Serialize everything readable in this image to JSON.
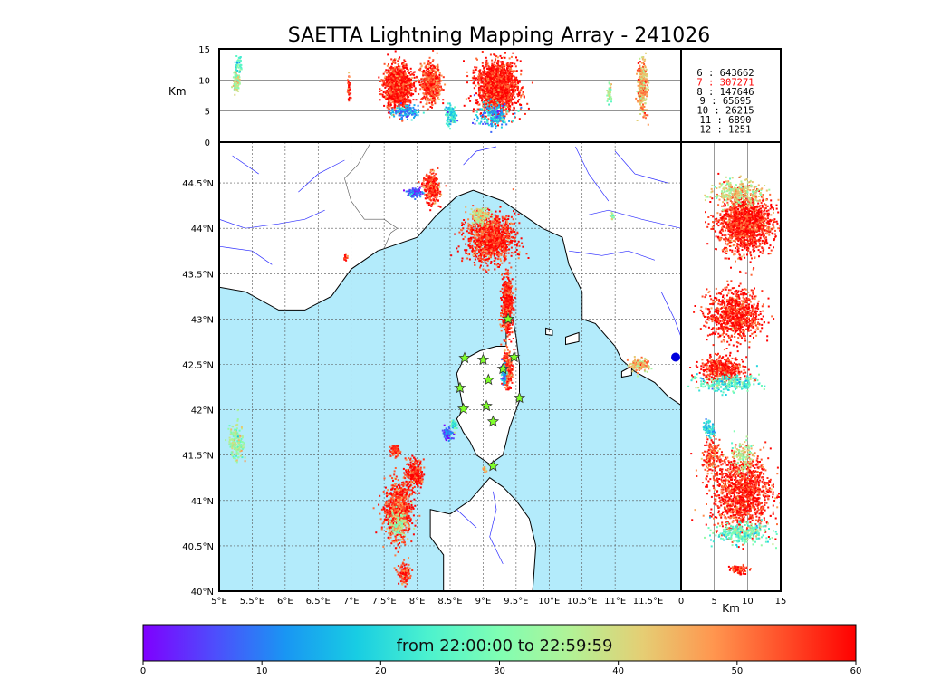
{
  "title": "SAETTA Lightning Mapping Array - 241026",
  "km_label_top": "Km",
  "km_label_side": "Km",
  "colorbar_label": "from 22:00:00 to 22:59:59",
  "colors": {
    "sea": "#b3ebfb",
    "land": "#ffffff",
    "coast": "#000000",
    "rivers": "#2b2bff",
    "borders": "#555555",
    "stars": "#7fff2a",
    "grid": "#555555",
    "highlight_count": "#ff0000"
  },
  "station_count_legend": [
    {
      "label": "6",
      "value": "643662",
      "color": "#000000"
    },
    {
      "label": "7",
      "value": "307271",
      "color": "#ff0000"
    },
    {
      "label": "8",
      "value": "147646",
      "color": "#000000"
    },
    {
      "label": "9",
      "value": "65695",
      "color": "#000000"
    },
    {
      "label": "10",
      "value": "26215",
      "color": "#000000"
    },
    {
      "label": "11",
      "value": "6890",
      "color": "#000000"
    },
    {
      "label": "12",
      "value": "1251",
      "color": "#000000"
    }
  ],
  "chart_data": [
    {
      "type": "scatter",
      "panel": "plan view (longitude vs latitude)",
      "xlim": [
        5.0,
        12.0
      ],
      "ylim": [
        40.0,
        44.95
      ],
      "xticks": [
        {
          "v": 5.0,
          "label": "5°E"
        },
        {
          "v": 5.5,
          "label": "5.5°E"
        },
        {
          "v": 6.0,
          "label": "6°E"
        },
        {
          "v": 6.5,
          "label": "6.5°E"
        },
        {
          "v": 7.0,
          "label": "7°E"
        },
        {
          "v": 7.5,
          "label": "7.5°E"
        },
        {
          "v": 8.0,
          "label": "8°E"
        },
        {
          "v": 8.5,
          "label": "8.5°E"
        },
        {
          "v": 9.0,
          "label": "9°E"
        },
        {
          "v": 9.5,
          "label": "9.5°E"
        },
        {
          "v": 10.0,
          "label": "10°E"
        },
        {
          "v": 10.5,
          "label": "10.5°E"
        },
        {
          "v": 11.0,
          "label": "11°E"
        },
        {
          "v": 11.5,
          "label": "11.5°E"
        }
      ],
      "yticks": [
        {
          "v": 40.0,
          "label": "40°N"
        },
        {
          "v": 40.5,
          "label": "40.5°N"
        },
        {
          "v": 41.0,
          "label": "41°N"
        },
        {
          "v": 41.5,
          "label": "41.5°N"
        },
        {
          "v": 42.0,
          "label": "42°N"
        },
        {
          "v": 42.5,
          "label": "42.5°N"
        },
        {
          "v": 43.0,
          "label": "43°N"
        },
        {
          "v": 43.5,
          "label": "43.5°N"
        },
        {
          "v": 44.0,
          "label": "44°N"
        },
        {
          "v": 44.5,
          "label": "44.5°N"
        }
      ],
      "grid": true,
      "clusters": [
        {
          "lon": 7.7,
          "lat": 40.9,
          "rlon": 0.22,
          "rlat": 0.35,
          "t": 55,
          "n": 900
        },
        {
          "lon": 7.7,
          "lat": 40.75,
          "rlon": 0.12,
          "rlat": 0.15,
          "t": 35,
          "n": 120
        },
        {
          "lon": 7.95,
          "lat": 41.3,
          "rlon": 0.15,
          "rlat": 0.18,
          "t": 58,
          "n": 300
        },
        {
          "lon": 7.65,
          "lat": 41.55,
          "rlon": 0.07,
          "rlat": 0.07,
          "t": 57,
          "n": 80
        },
        {
          "lon": 7.8,
          "lat": 40.2,
          "rlon": 0.1,
          "rlat": 0.12,
          "t": 55,
          "n": 120
        },
        {
          "lon": 5.25,
          "lat": 41.65,
          "rlon": 0.12,
          "rlat": 0.22,
          "t": 35,
          "n": 180
        },
        {
          "lon": 9.1,
          "lat": 43.9,
          "rlon": 0.4,
          "rlat": 0.28,
          "t": 57,
          "n": 1200
        },
        {
          "lon": 8.95,
          "lat": 44.15,
          "rlon": 0.15,
          "rlat": 0.1,
          "t": 40,
          "n": 150
        },
        {
          "lon": 8.2,
          "lat": 44.45,
          "rlon": 0.14,
          "rlat": 0.18,
          "t": 56,
          "n": 300
        },
        {
          "lon": 7.95,
          "lat": 44.4,
          "rlon": 0.12,
          "rlat": 0.05,
          "t": 8,
          "n": 120
        },
        {
          "lon": 9.35,
          "lat": 43.15,
          "rlon": 0.09,
          "rlat": 0.35,
          "t": 58,
          "n": 550
        },
        {
          "lon": 9.35,
          "lat": 42.45,
          "rlon": 0.08,
          "rlat": 0.2,
          "t": 55,
          "n": 350
        },
        {
          "lon": 9.3,
          "lat": 42.4,
          "rlon": 0.05,
          "rlat": 0.12,
          "t": 15,
          "n": 80
        },
        {
          "lon": 11.35,
          "lat": 42.5,
          "rlon": 0.15,
          "rlat": 0.08,
          "t": 45,
          "n": 150
        },
        {
          "lon": 8.45,
          "lat": 41.75,
          "rlon": 0.1,
          "rlat": 0.07,
          "t": 8,
          "n": 80
        },
        {
          "lon": 8.55,
          "lat": 41.85,
          "rlon": 0.05,
          "rlat": 0.06,
          "t": 25,
          "n": 40
        },
        {
          "lon": 6.9,
          "lat": 43.68,
          "rlon": 0.03,
          "rlat": 0.03,
          "t": 57,
          "n": 20
        },
        {
          "lon": 10.95,
          "lat": 44.15,
          "rlon": 0.03,
          "rlat": 0.04,
          "t": 33,
          "n": 20
        },
        {
          "lon": 9.0,
          "lat": 41.35,
          "rlon": 0.04,
          "rlat": 0.04,
          "t": 45,
          "n": 20
        }
      ],
      "stations": [
        {
          "lon": 8.72,
          "lat": 42.57
        },
        {
          "lon": 9.0,
          "lat": 42.55
        },
        {
          "lon": 9.47,
          "lat": 42.58
        },
        {
          "lon": 9.08,
          "lat": 42.33
        },
        {
          "lon": 9.3,
          "lat": 42.45
        },
        {
          "lon": 8.65,
          "lat": 42.24
        },
        {
          "lon": 9.55,
          "lat": 42.13
        },
        {
          "lon": 8.7,
          "lat": 42.01
        },
        {
          "lon": 9.05,
          "lat": 42.04
        },
        {
          "lon": 9.15,
          "lat": 41.87
        },
        {
          "lon": 9.15,
          "lat": 41.38
        },
        {
          "lon": 9.38,
          "lat": 43.0
        }
      ]
    },
    {
      "type": "scatter",
      "panel": "altitude vs longitude",
      "xlim": [
        5.0,
        12.0
      ],
      "ylim": [
        0,
        15
      ],
      "ylabel": "Km",
      "yticks": [
        {
          "v": 0,
          "label": "0"
        },
        {
          "v": 5,
          "label": "5"
        },
        {
          "v": 10,
          "label": "10"
        },
        {
          "v": 15,
          "label": "15"
        }
      ],
      "gridlines_y": [
        5,
        10
      ],
      "clusters": [
        {
          "x": 5.25,
          "alt": 10,
          "rx": 0.05,
          "ralt": 1.5,
          "t": 35,
          "n": 100
        },
        {
          "x": 5.28,
          "alt": 12.5,
          "rx": 0.04,
          "ralt": 1.5,
          "t": 25,
          "n": 40
        },
        {
          "x": 6.95,
          "alt": 8.5,
          "rx": 0.02,
          "ralt": 2.5,
          "t": 58,
          "n": 40
        },
        {
          "x": 7.7,
          "alt": 9,
          "rx": 0.2,
          "ralt": 3.5,
          "t": 58,
          "n": 1200
        },
        {
          "x": 7.8,
          "alt": 5,
          "rx": 0.2,
          "ralt": 1,
          "t": 12,
          "n": 150
        },
        {
          "x": 8.2,
          "alt": 9.5,
          "rx": 0.15,
          "ralt": 3,
          "t": 55,
          "n": 600
        },
        {
          "x": 8.5,
          "alt": 4.5,
          "rx": 0.08,
          "ralt": 1.5,
          "t": 20,
          "n": 120
        },
        {
          "x": 9.2,
          "alt": 9,
          "rx": 0.3,
          "ralt": 4,
          "t": 58,
          "n": 1800
        },
        {
          "x": 9.15,
          "alt": 4.5,
          "rx": 0.25,
          "ralt": 2,
          "t": 15,
          "n": 200
        },
        {
          "x": 10.9,
          "alt": 8,
          "rx": 0.03,
          "ralt": 1.5,
          "t": 35,
          "n": 50
        },
        {
          "x": 11.4,
          "alt": 9,
          "rx": 0.07,
          "ralt": 4,
          "t": 46,
          "n": 350
        }
      ]
    },
    {
      "type": "scatter",
      "panel": "latitude vs altitude",
      "xlim": [
        0,
        15
      ],
      "ylim": [
        40.0,
        44.95
      ],
      "xlabel": "Km",
      "xticks": [
        {
          "v": 0,
          "label": "0"
        },
        {
          "v": 5,
          "label": "5"
        },
        {
          "v": 10,
          "label": "10"
        },
        {
          "v": 15,
          "label": "15"
        }
      ],
      "gridlines_x": [
        5,
        10
      ],
      "clusters": [
        {
          "alt": 9.5,
          "lat": 44.05,
          "ralt": 4.5,
          "rlat": 0.35,
          "t": 58,
          "n": 1500
        },
        {
          "alt": 8.5,
          "lat": 44.4,
          "ralt": 4,
          "rlat": 0.15,
          "t": 40,
          "n": 300
        },
        {
          "alt": 8,
          "lat": 43.05,
          "ralt": 4.5,
          "rlat": 0.3,
          "t": 58,
          "n": 900
        },
        {
          "alt": 6,
          "lat": 42.45,
          "ralt": 3.5,
          "rlat": 0.15,
          "t": 58,
          "n": 500
        },
        {
          "alt": 7,
          "lat": 42.3,
          "ralt": 5,
          "rlat": 0.1,
          "t": 25,
          "n": 250
        },
        {
          "alt": 9,
          "lat": 41.1,
          "ralt": 5,
          "rlat": 0.45,
          "t": 58,
          "n": 1300
        },
        {
          "alt": 9,
          "lat": 40.65,
          "ralt": 4.5,
          "rlat": 0.12,
          "t": 28,
          "n": 300
        },
        {
          "alt": 8.5,
          "lat": 40.25,
          "ralt": 1.5,
          "rlat": 0.05,
          "t": 57,
          "n": 80
        },
        {
          "alt": 4.5,
          "lat": 41.5,
          "ralt": 1.5,
          "rlat": 0.2,
          "t": 55,
          "n": 150
        },
        {
          "alt": 4,
          "lat": 41.8,
          "ralt": 1,
          "rlat": 0.1,
          "t": 20,
          "n": 80
        },
        {
          "alt": 9,
          "lat": 41.5,
          "ralt": 2,
          "rlat": 0.2,
          "t": 38,
          "n": 120
        }
      ]
    },
    {
      "type": "heatmap",
      "panel": "time colorbar",
      "xlim": [
        0,
        60
      ],
      "xticks": [
        {
          "v": 0,
          "label": "0"
        },
        {
          "v": 10,
          "label": "10"
        },
        {
          "v": 20,
          "label": "20"
        },
        {
          "v": 30,
          "label": "30"
        },
        {
          "v": 40,
          "label": "40"
        },
        {
          "v": 50,
          "label": "50"
        },
        {
          "v": 60,
          "label": "60"
        }
      ],
      "colormap": [
        "#7f00ff",
        "#4e4dfc",
        "#1996f3",
        "#18cde3",
        "#4cf2ce",
        "#80feb3",
        "#b2f296",
        "#e5ce74",
        "#ff964f",
        "#ff4d28",
        "#ff0000"
      ]
    }
  ]
}
